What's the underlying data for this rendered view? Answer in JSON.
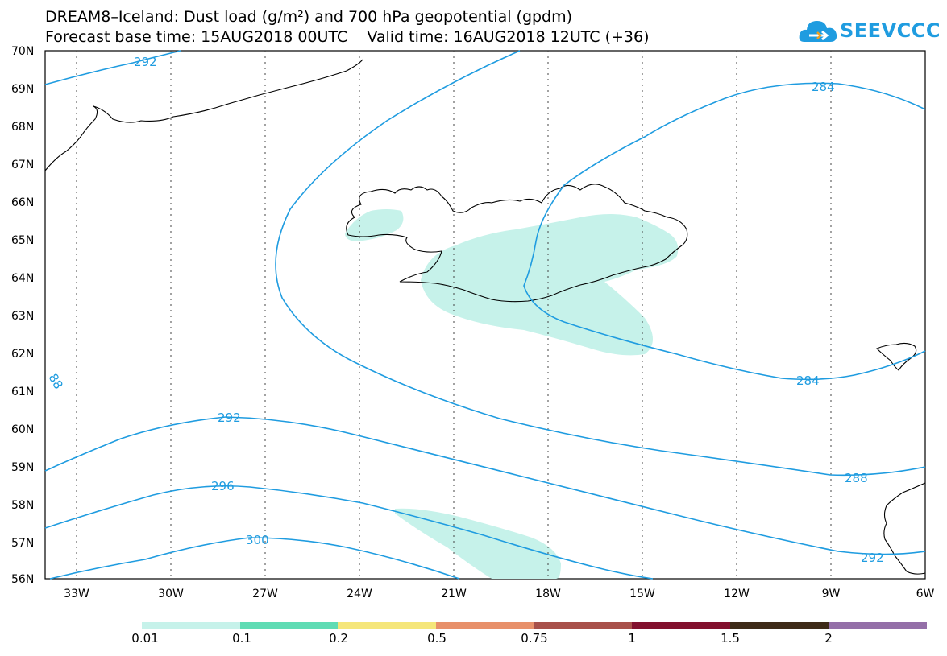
{
  "title_line1": "DREAM8–Iceland: Dust load (g/m²) and 700 hPa geopotential (gpdm)",
  "title_line2": "Forecast base time: 15AUG2018 00UTC    Valid time: 16AUG2018 12UTC (+36)",
  "logo": {
    "text": "SEEVCCC",
    "icon": "cloud-icon",
    "color": "#1f9ce0"
  },
  "map": {
    "lat_labels": [
      "70N",
      "69N",
      "68N",
      "67N",
      "66N",
      "65N",
      "64N",
      "63N",
      "62N",
      "61N",
      "60N",
      "59N",
      "58N",
      "57N",
      "56N"
    ],
    "lon_labels": [
      "33W",
      "30W",
      "27W",
      "24W",
      "21W",
      "18W",
      "15W",
      "12W",
      "9W",
      "6W"
    ],
    "contour_labels": [
      "292",
      "284",
      "88",
      "284",
      "292",
      "296",
      "300",
      "288",
      "292"
    ],
    "contour_color": "#1f9ce0",
    "dust_color": "#c6f2ea",
    "gridlines": "dotted"
  },
  "colorbar": {
    "colors": [
      "#c6f2ea",
      "#5fdcb4",
      "#f5e67a",
      "#e8906a",
      "#a8504a",
      "#82102e",
      "#3e2a18",
      "#946fa8"
    ],
    "labels": [
      "0.01",
      "0.1",
      "0.2",
      "0.5",
      "0.75",
      "1",
      "1.5",
      "2"
    ]
  }
}
